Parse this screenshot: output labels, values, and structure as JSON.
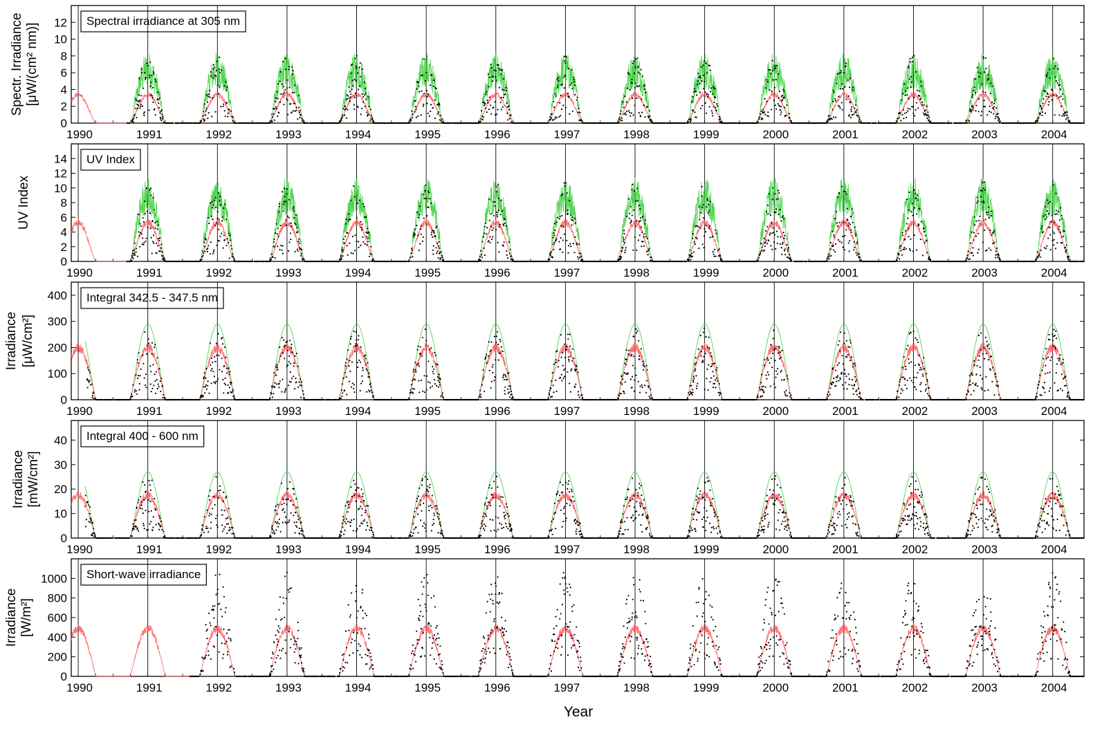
{
  "figure": {
    "xlabel": "Year",
    "year_ticks": [
      "1990",
      "1991",
      "1992",
      "1993",
      "1994",
      "1995",
      "1996",
      "1997",
      "1998",
      "1999",
      "2000",
      "2001",
      "2002",
      "2003",
      "2004"
    ],
    "colors": {
      "model_max": "#33cc33",
      "model_mean": "#ff4d4d",
      "observations": "#000000"
    }
  },
  "chart_data": [
    {
      "type": "scatter",
      "title": "Spectral irradiance at 305 nm",
      "ylabel_line1": "Spectr. Irradiance",
      "ylabel_line2": "[μW/(cm² nm)]",
      "ylim": [
        0,
        14
      ],
      "yticks": [
        "0",
        "2",
        "4",
        "6",
        "8",
        "10",
        "12"
      ],
      "xlim": [
        1989.9,
        2004.45
      ],
      "seasonal_peak_mean": 3.4,
      "seasonal_peak_max": 8.5,
      "obs_start": 1990.7
    },
    {
      "type": "scatter",
      "title": "UV Index",
      "ylabel_line1": "UV Index",
      "ylabel_line2": "",
      "ylim": [
        0,
        16
      ],
      "yticks": [
        "0",
        "2",
        "4",
        "6",
        "8",
        "10",
        "12",
        "14"
      ],
      "xlim": [
        1989.9,
        2004.45
      ],
      "seasonal_peak_mean": 5.3,
      "seasonal_peak_max": 11.5,
      "obs_start": 1990.7
    },
    {
      "type": "scatter",
      "title": "Integral 342.5 - 347.5 nm",
      "ylabel_line1": "Irradiance",
      "ylabel_line2": "[μW/cm²]",
      "ylim": [
        0,
        450
      ],
      "yticks": [
        "0",
        "100",
        "200",
        "300",
        "400"
      ],
      "xlim": [
        1989.9,
        2004.45
      ],
      "seasonal_peak_mean": 200,
      "seasonal_peak_max": 290,
      "obs_start": 1990.1
    },
    {
      "type": "scatter",
      "title": "Integral 400 - 600 nm",
      "ylabel_line1": "Irradiance",
      "ylabel_line2": "[mW/cm²]",
      "ylim": [
        0,
        48
      ],
      "yticks": [
        "0",
        "10",
        "20",
        "30",
        "40"
      ],
      "xlim": [
        1989.9,
        2004.45
      ],
      "seasonal_peak_mean": 17.5,
      "seasonal_peak_max": 27,
      "obs_start": 1990.1
    },
    {
      "type": "scatter",
      "title": "Short-wave irradiance",
      "ylabel_line1": "Irradiance",
      "ylabel_line2": "[W/m²]",
      "ylim": [
        0,
        1200
      ],
      "yticks": [
        "0",
        "200",
        "400",
        "600",
        "800",
        "1000"
      ],
      "xlim": [
        1989.9,
        2004.45
      ],
      "seasonal_peak_mean": 490,
      "seasonal_peak_max": 0,
      "obs_start": 1991.6
    }
  ]
}
